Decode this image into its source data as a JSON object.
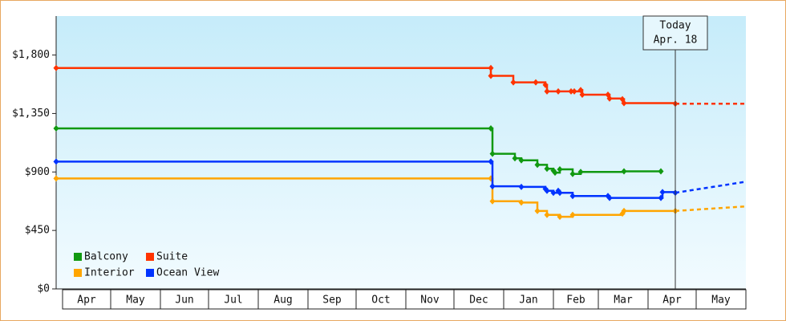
{
  "chart_data": {
    "type": "step",
    "xlim": [
      -4,
      426
    ],
    "xticks": [
      {
        "value": 0,
        "label": "Apr"
      },
      {
        "value": 30,
        "label": "May"
      },
      {
        "value": 61,
        "label": "Jun"
      },
      {
        "value": 91,
        "label": "Jul"
      },
      {
        "value": 122,
        "label": "Aug"
      },
      {
        "value": 153,
        "label": "Sep"
      },
      {
        "value": 183,
        "label": "Oct"
      },
      {
        "value": 214,
        "label": "Nov"
      },
      {
        "value": 244,
        "label": "Dec"
      },
      {
        "value": 275,
        "label": "Jan"
      },
      {
        "value": 306,
        "label": "Feb"
      },
      {
        "value": 334,
        "label": "Mar"
      },
      {
        "value": 365,
        "label": "Apr"
      },
      {
        "value": 395,
        "label": "May"
      }
    ],
    "ylim": [
      0,
      2100
    ],
    "yticks": [
      {
        "value": 0,
        "label": "$0"
      },
      {
        "value": 450,
        "label": "$450"
      },
      {
        "value": 900,
        "label": "$900"
      },
      {
        "value": 1350,
        "label": "$1,350"
      },
      {
        "value": 1800,
        "label": "$1,800"
      }
    ],
    "today": {
      "x": 382,
      "label": [
        "Today",
        "Apr. 18"
      ]
    },
    "forecast_x": [
      382,
      426
    ],
    "series": [
      {
        "name": "Balcony",
        "color": "#119911",
        "x": [
          -4,
          267,
          268,
          282,
          286,
          296,
          302,
          306,
          307,
          310,
          318,
          323,
          350,
          373
        ],
        "values": [
          1235,
          1235,
          1040,
          1005,
          990,
          955,
          925,
          910,
          895,
          920,
          885,
          900,
          905,
          905
        ]
      },
      {
        "name": "Suite",
        "color": "#ff3300",
        "x": [
          -4,
          267,
          267,
          281,
          295,
          301,
          302,
          309,
          317,
          319,
          323,
          324,
          340,
          341,
          349,
          350,
          382
        ],
        "values": [
          1700,
          1700,
          1640,
          1590,
          1590,
          1570,
          1520,
          1520,
          1520,
          1520,
          1530,
          1495,
          1495,
          1465,
          1460,
          1430,
          1425
        ],
        "forecast": [
          1425,
          1425
        ]
      },
      {
        "name": "Interior",
        "color": "#ffa500",
        "x": [
          -4,
          267,
          268,
          286,
          296,
          302,
          310,
          318,
          349,
          350,
          382
        ],
        "values": [
          850,
          850,
          675,
          665,
          600,
          570,
          555,
          570,
          580,
          600,
          600
        ],
        "forecast": [
          600,
          635
        ]
      },
      {
        "name": "Ocean View",
        "color": "#0033ff",
        "x": [
          -4,
          267,
          268,
          286,
          301,
          302,
          306,
          309,
          310,
          318,
          340,
          341,
          373,
          374,
          382
        ],
        "values": [
          980,
          980,
          790,
          785,
          770,
          755,
          740,
          755,
          740,
          715,
          715,
          700,
          700,
          745,
          740
        ],
        "forecast": [
          740,
          825
        ]
      }
    ]
  }
}
